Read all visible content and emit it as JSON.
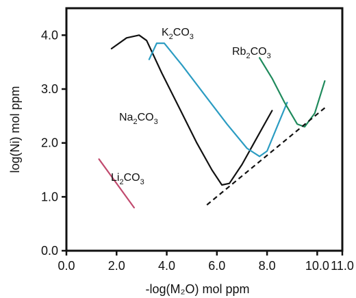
{
  "chart_data": {
    "type": "line",
    "xlabel": "-log(M₂O) mol ppm",
    "ylabel": "log(Ni) mol ppm",
    "xlim": [
      0,
      11
    ],
    "ylim": [
      0,
      4.5
    ],
    "xticks": [
      "0.0",
      "2.0",
      "4.0",
      "6.0",
      "8.0",
      "10.0",
      "11.0"
    ],
    "xtick_values": [
      0,
      2,
      4,
      6,
      8,
      10,
      11
    ],
    "yticks": [
      "0.0",
      "1.0",
      "2.0",
      "3.0",
      "4.0"
    ],
    "ytick_values": [
      0,
      1,
      2,
      3,
      4
    ],
    "grid": false,
    "series": [
      {
        "name": "Li2CO3",
        "label_parts": [
          "Li",
          "2",
          "CO",
          "3"
        ],
        "color": "#c14a6e",
        "points": [
          [
            1.3,
            1.7
          ],
          [
            2.7,
            0.8
          ]
        ]
      },
      {
        "name": "Na2CO3",
        "label_parts": [
          "Na",
          "2",
          "CO",
          "3"
        ],
        "color": "#111111",
        "points": [
          [
            1.8,
            3.75
          ],
          [
            2.4,
            3.95
          ],
          [
            2.9,
            4.0
          ],
          [
            3.2,
            3.9
          ],
          [
            3.8,
            3.3
          ],
          [
            4.5,
            2.65
          ],
          [
            5.2,
            2.0
          ],
          [
            5.8,
            1.5
          ],
          [
            6.2,
            1.22
          ],
          [
            6.5,
            1.25
          ],
          [
            7.0,
            1.6
          ],
          [
            7.6,
            2.1
          ],
          [
            8.2,
            2.6
          ]
        ]
      },
      {
        "name": "K2CO3",
        "label_parts": [
          "K",
          "2",
          "CO",
          "3"
        ],
        "color": "#2b9cc2",
        "points": [
          [
            3.3,
            3.55
          ],
          [
            3.6,
            3.85
          ],
          [
            3.9,
            3.85
          ],
          [
            4.6,
            3.45
          ],
          [
            5.5,
            2.9
          ],
          [
            6.4,
            2.35
          ],
          [
            7.2,
            1.9
          ],
          [
            7.7,
            1.75
          ],
          [
            8.0,
            1.85
          ],
          [
            8.4,
            2.3
          ],
          [
            8.8,
            2.75
          ]
        ]
      },
      {
        "name": "Rb2CO3",
        "label_parts": [
          "Rb",
          "2",
          "CO",
          "3"
        ],
        "color": "#1f8a5c",
        "points": [
          [
            7.7,
            3.58
          ],
          [
            8.2,
            3.2
          ],
          [
            8.7,
            2.75
          ],
          [
            9.2,
            2.35
          ],
          [
            9.5,
            2.3
          ],
          [
            9.9,
            2.55
          ],
          [
            10.3,
            3.15
          ]
        ]
      },
      {
        "name": "",
        "color": "#111111",
        "dashed": true,
        "points": [
          [
            5.6,
            0.85
          ],
          [
            10.3,
            2.65
          ]
        ]
      }
    ]
  }
}
